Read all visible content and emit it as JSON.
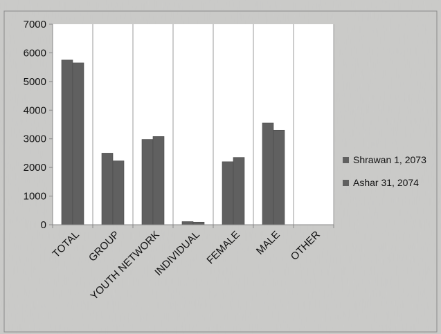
{
  "chart_data": {
    "type": "bar",
    "categories": [
      "TOTAL",
      "GROUP",
      "YOUTH NETWORK",
      "INDIVIDUAL",
      "FEMALE",
      "MALE",
      "OTHER"
    ],
    "series": [
      {
        "name": "Shrawan 1, 2073",
        "values": [
          5750,
          2500,
          2980,
          110,
          2200,
          3550,
          0
        ]
      },
      {
        "name": "Ashar 31, 2074",
        "values": [
          5650,
          2230,
          3080,
          90,
          2350,
          3300,
          0
        ]
      }
    ],
    "title": "",
    "xlabel": "",
    "ylabel": "",
    "ylim": [
      0,
      7000
    ],
    "yticks": [
      0,
      1000,
      2000,
      3000,
      4000,
      5000,
      6000,
      7000
    ],
    "grid": "vertical",
    "legend_position": "right",
    "colors": {
      "background": "#c8c8c6",
      "plot_background": "#ffffff",
      "bar": "#606060",
      "gridline": "#9a9a9a",
      "axis": "#888888"
    }
  }
}
